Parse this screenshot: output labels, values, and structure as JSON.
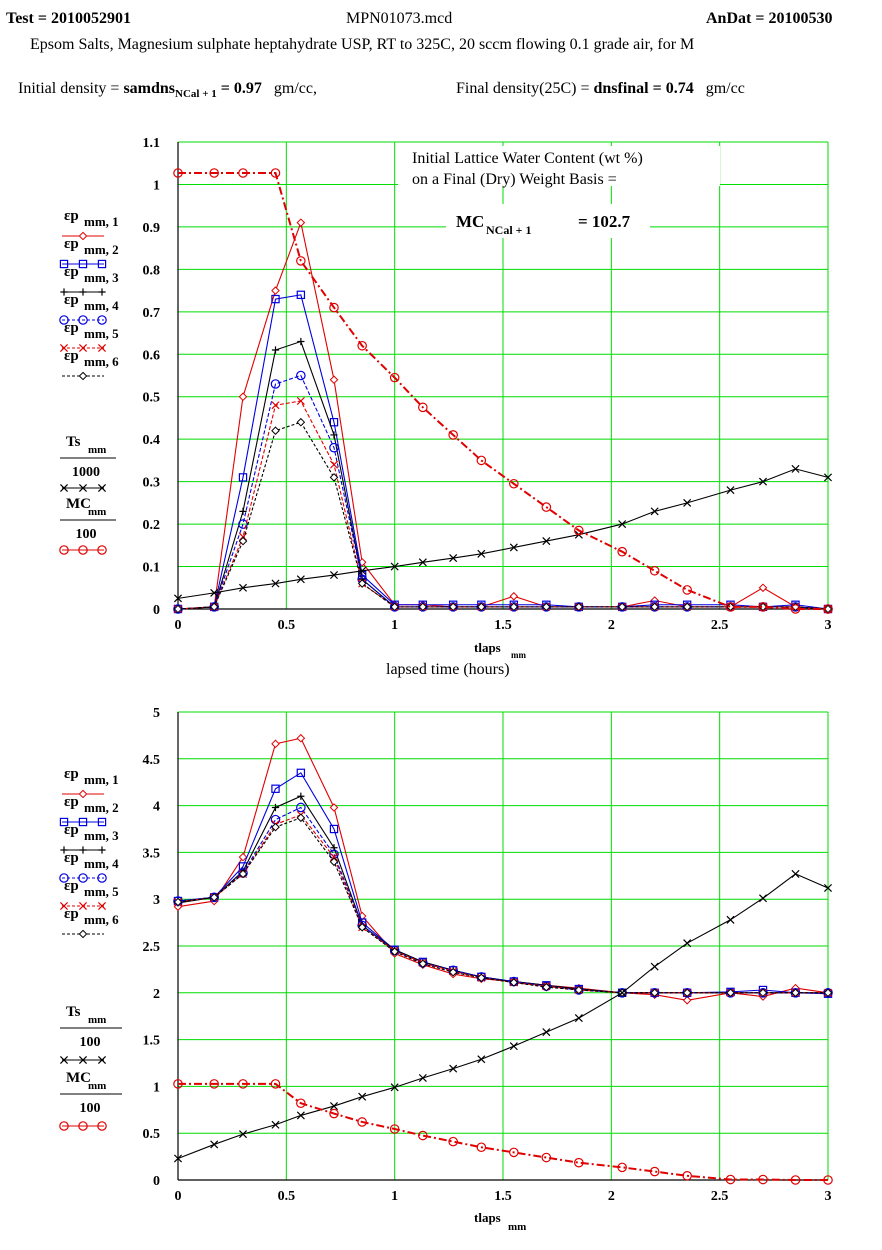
{
  "header": {
    "test_label": "Test = 2010052901",
    "file_name": "MPN01073.mcd",
    "andat_label": "AnDat = 20100530",
    "description": "Epsom Salts, Magnesium sulphate heptahydrate USP, RT to 325C, 20 sccm flowing 0.1 grade air, for M",
    "initial_density_label": "Initial density =",
    "initial_density_var": "samdns",
    "initial_density_sub": "NCal + 1",
    "initial_density_value": "= 0.97",
    "initial_density_unit": "gm/cc,",
    "final_density_label": "Final density(25C) =",
    "final_density_var": "dnsfinal",
    "final_density_value": "= 0.74",
    "final_density_unit": "gm/cc"
  },
  "annotation": {
    "line1": "Initial Lattice Water Content (wt %)",
    "line2": "on a Final (Dry) Weight Basis =",
    "mc_var": "MC",
    "mc_sub": "NCal + 1",
    "mc_value": "= 102.7"
  },
  "legend1": [
    {
      "label": "εp",
      "sub": "mm, 1",
      "color": "#e00000",
      "marker": "diamond"
    },
    {
      "label": "εp",
      "sub": "mm, 2",
      "color": "#0000e0",
      "marker": "square"
    },
    {
      "label": "εp",
      "sub": "mm, 3",
      "color": "#000000",
      "marker": "plus"
    },
    {
      "label": "εp",
      "sub": "mm, 4",
      "color": "#0000e0",
      "marker": "circle"
    },
    {
      "label": "εp",
      "sub": "mm, 5",
      "color": "#e00000",
      "marker": "x"
    },
    {
      "label": "εp",
      "sub": "mm, 6",
      "color": "#000000",
      "marker": "diamond"
    },
    {
      "label": "Ts",
      "sub": "mm",
      "den": "1000",
      "color": "#000000",
      "marker": "x"
    },
    {
      "label": "MC",
      "sub": "mm",
      "den": "100",
      "color": "#e00000",
      "marker": "circle"
    }
  ],
  "legend2": [
    {
      "label": "εp",
      "sub": "mm, 1",
      "color": "#e00000",
      "marker": "diamond"
    },
    {
      "label": "εp",
      "sub": "mm, 2",
      "color": "#0000e0",
      "marker": "square"
    },
    {
      "label": "εp",
      "sub": "mm, 3",
      "color": "#000000",
      "marker": "plus"
    },
    {
      "label": "εp",
      "sub": "mm, 4",
      "color": "#0000e0",
      "marker": "circle"
    },
    {
      "label": "εp",
      "sub": "mm, 5",
      "color": "#e00000",
      "marker": "x"
    },
    {
      "label": "εp",
      "sub": "mm, 6",
      "color": "#000000",
      "marker": "diamond"
    },
    {
      "label": "Ts",
      "sub": "mm",
      "den": "100",
      "color": "#000000",
      "marker": "x"
    },
    {
      "label": "MC",
      "sub": "mm",
      "den": "100",
      "color": "#e00000",
      "marker": "circle"
    }
  ],
  "chart_data": [
    {
      "type": "line",
      "xlabel": "tlaps",
      "xlabel_sub": "mm",
      "xlabel2": "lapsed time (hours)",
      "xlim": [
        0,
        3
      ],
      "ylim": [
        0,
        1.1
      ],
      "xticks": [
        "0",
        "0.5",
        "1",
        "1.5",
        "2",
        "2.5",
        "3"
      ],
      "yticks": [
        "0",
        "0.1",
        "0.2",
        "0.3",
        "0.4",
        "0.5",
        "0.6",
        "0.7",
        "0.8",
        "0.9",
        "1",
        "1.1"
      ],
      "grid": true,
      "x": [
        0,
        0.167,
        0.3,
        0.45,
        0.567,
        0.72,
        0.85,
        1.0,
        1.13,
        1.27,
        1.4,
        1.55,
        1.7,
        1.85,
        2.05,
        2.2,
        2.35,
        2.55,
        2.7,
        2.85,
        3.0
      ],
      "series": [
        {
          "color": "#e00000",
          "dash": "",
          "marker": "diamond",
          "values": [
            0,
            0.005,
            0.5,
            0.75,
            0.91,
            0.54,
            0.11,
            0.01,
            0.01,
            0.005,
            0.005,
            0.03,
            0.005,
            0.005,
            0.005,
            0.02,
            0.005,
            0.005,
            0.05,
            0.005,
            0
          ]
        },
        {
          "color": "#0000e0",
          "dash": "",
          "marker": "square",
          "values": [
            0,
            0.005,
            0.31,
            0.73,
            0.74,
            0.44,
            0.08,
            0.01,
            0.01,
            0.01,
            0.01,
            0.01,
            0.01,
            0.005,
            0.005,
            0.01,
            0.01,
            0.01,
            0.005,
            0.01,
            0
          ]
        },
        {
          "color": "#000000",
          "dash": "",
          "marker": "plus",
          "values": [
            0,
            0.005,
            0.23,
            0.61,
            0.63,
            0.41,
            0.07,
            0.005,
            0.005,
            0.005,
            0.005,
            0.005,
            0.005,
            0.005,
            0.005,
            0.005,
            0.005,
            0.005,
            0.005,
            0.005,
            0
          ]
        },
        {
          "color": "#0000e0",
          "dash": "4,2",
          "marker": "circle",
          "values": [
            0,
            0.005,
            0.2,
            0.53,
            0.55,
            0.38,
            0.07,
            0.005,
            0.005,
            0.005,
            0.005,
            0.005,
            0.005,
            0.005,
            0.005,
            0.005,
            0.005,
            0.005,
            0.005,
            0.005,
            0
          ]
        },
        {
          "color": "#e00000",
          "dash": "4,2",
          "marker": "x",
          "values": [
            0,
            0.005,
            0.17,
            0.48,
            0.49,
            0.34,
            0.06,
            0.005,
            0.005,
            0.005,
            0.005,
            0.005,
            0.005,
            0.005,
            0.005,
            0.005,
            0.005,
            0.005,
            0.005,
            0.005,
            0
          ]
        },
        {
          "color": "#000000",
          "dash": "3,2",
          "marker": "diamond",
          "values": [
            0,
            0.005,
            0.16,
            0.42,
            0.44,
            0.31,
            0.06,
            0.005,
            0.005,
            0.005,
            0.005,
            0.005,
            0.005,
            0.005,
            0.005,
            0.005,
            0.005,
            0.005,
            0.005,
            0.005,
            0
          ]
        },
        {
          "color": "#000000",
          "dash": "",
          "marker": "x",
          "values": [
            0.025,
            0.038,
            0.05,
            0.06,
            0.07,
            0.08,
            0.09,
            0.1,
            0.11,
            0.12,
            0.13,
            0.145,
            0.16,
            0.175,
            0.2,
            0.23,
            0.25,
            0.28,
            0.3,
            0.33,
            0.31
          ]
        },
        {
          "color": "#e00000",
          "dash": "8,3,2,3",
          "marker": "circle",
          "width": 2,
          "values": [
            1.027,
            1.027,
            1.027,
            1.027,
            0.82,
            0.71,
            0.62,
            0.545,
            0.475,
            0.41,
            0.35,
            0.295,
            0.24,
            0.185,
            0.135,
            0.09,
            0.045,
            0.005,
            0.005,
            0,
            0
          ]
        }
      ]
    },
    {
      "type": "line",
      "xlabel": "tlaps",
      "xlabel_sub": "mm",
      "xlim": [
        0,
        3
      ],
      "ylim": [
        0,
        5
      ],
      "xticks": [
        "0",
        "0.5",
        "1",
        "1.5",
        "2",
        "2.5",
        "3"
      ],
      "yticks": [
        "0",
        "0.5",
        "1",
        "1.5",
        "2",
        "2.5",
        "3",
        "3.5",
        "4",
        "4.5",
        "5"
      ],
      "grid": true,
      "x": [
        0,
        0.167,
        0.3,
        0.45,
        0.567,
        0.72,
        0.85,
        1.0,
        1.13,
        1.27,
        1.4,
        1.55,
        1.7,
        1.85,
        2.05,
        2.2,
        2.35,
        2.55,
        2.7,
        2.85,
        3.0
      ],
      "series": [
        {
          "color": "#e00000",
          "dash": "",
          "marker": "diamond",
          "values": [
            2.92,
            2.98,
            3.45,
            4.66,
            4.72,
            3.98,
            2.82,
            2.42,
            2.3,
            2.2,
            2.15,
            2.12,
            2.08,
            2.05,
            2.0,
            1.98,
            1.92,
            2.0,
            1.96,
            2.05,
            2.0
          ]
        },
        {
          "color": "#0000e0",
          "dash": "",
          "marker": "square",
          "values": [
            2.98,
            3.02,
            3.35,
            4.18,
            4.35,
            3.75,
            2.75,
            2.46,
            2.33,
            2.24,
            2.17,
            2.12,
            2.08,
            2.04,
            2.0,
            2.0,
            2.0,
            2.01,
            2.03,
            2.0,
            1.99
          ]
        },
        {
          "color": "#000000",
          "dash": "",
          "marker": "plus",
          "values": [
            2.96,
            3.02,
            3.3,
            3.98,
            4.1,
            3.55,
            2.72,
            2.46,
            2.33,
            2.24,
            2.17,
            2.12,
            2.08,
            2.04,
            2.0,
            2.0,
            2.0,
            2.0,
            2.0,
            2.0,
            2.0
          ]
        },
        {
          "color": "#0000e0",
          "dash": "4,2",
          "marker": "circle",
          "values": [
            2.98,
            3.02,
            3.28,
            3.85,
            3.98,
            3.48,
            2.72,
            2.45,
            2.32,
            2.24,
            2.17,
            2.12,
            2.07,
            2.03,
            2.0,
            2.0,
            2.0,
            2.0,
            2.0,
            2.0,
            2.0
          ]
        },
        {
          "color": "#e00000",
          "dash": "4,2",
          "marker": "x",
          "values": [
            2.97,
            3.02,
            3.27,
            3.8,
            3.9,
            3.45,
            2.7,
            2.45,
            2.32,
            2.23,
            2.16,
            2.11,
            2.07,
            2.03,
            2.0,
            2.0,
            2.0,
            2.0,
            2.0,
            2.0,
            2.0
          ]
        },
        {
          "color": "#000000",
          "dash": "3,2",
          "marker": "diamond",
          "values": [
            2.97,
            3.02,
            3.27,
            3.77,
            3.87,
            3.4,
            2.7,
            2.44,
            2.31,
            2.22,
            2.16,
            2.11,
            2.06,
            2.03,
            2.0,
            2.0,
            2.0,
            2.0,
            2.0,
            2.0,
            2.0
          ]
        },
        {
          "color": "#000000",
          "dash": "",
          "marker": "x",
          "values": [
            0.23,
            0.38,
            0.49,
            0.59,
            0.69,
            0.79,
            0.89,
            0.99,
            1.09,
            1.19,
            1.29,
            1.43,
            1.58,
            1.73,
            2.0,
            2.28,
            2.53,
            2.78,
            3.01,
            3.27,
            3.12
          ]
        },
        {
          "color": "#e00000",
          "dash": "8,3,2,3",
          "marker": "circle",
          "width": 2,
          "values": [
            1.027,
            1.027,
            1.027,
            1.027,
            0.82,
            0.71,
            0.62,
            0.545,
            0.475,
            0.41,
            0.35,
            0.295,
            0.24,
            0.185,
            0.135,
            0.09,
            0.045,
            0.005,
            0.005,
            0,
            0
          ]
        }
      ]
    }
  ]
}
